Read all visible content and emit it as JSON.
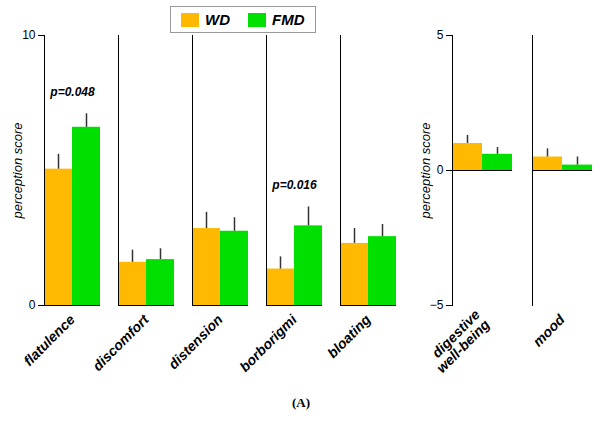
{
  "chart_data": [
    {
      "type": "bar",
      "categories": [
        "flatulence",
        "discomfort",
        "distension",
        "borborigmi",
        "bloating"
      ],
      "series": [
        {
          "name": "WD",
          "color": "#FFB900",
          "values": [
            5.05,
            1.6,
            2.85,
            1.35,
            2.3
          ],
          "errors": [
            0.55,
            0.45,
            0.6,
            0.45,
            0.55
          ]
        },
        {
          "name": "FMD",
          "color": "#00E000",
          "values": [
            6.6,
            1.7,
            2.75,
            2.95,
            2.55
          ],
          "errors": [
            0.5,
            0.4,
            0.5,
            0.7,
            0.45
          ]
        }
      ],
      "y_label": "perception score",
      "ylim": [
        0,
        10
      ],
      "yticks": [
        0,
        10
      ],
      "legend": "top",
      "annotations": [
        {
          "text": "p=0.048",
          "category": "flatulence"
        },
        {
          "text": "p=0.016",
          "category": "borborigmi"
        }
      ]
    },
    {
      "type": "bar",
      "categories": [
        "digestive well-being",
        "mood"
      ],
      "series": [
        {
          "name": "WD",
          "color": "#FFB900",
          "values": [
            1.0,
            0.5
          ],
          "errors": [
            0.3,
            0.3
          ]
        },
        {
          "name": "FMD",
          "color": "#00E000",
          "values": [
            0.6,
            0.2
          ],
          "errors": [
            0.25,
            0.3
          ]
        }
      ],
      "y_label": "perception score",
      "ylim": [
        -5,
        5
      ],
      "yticks": [
        -5,
        0,
        5
      ]
    }
  ],
  "caption": "(A)"
}
